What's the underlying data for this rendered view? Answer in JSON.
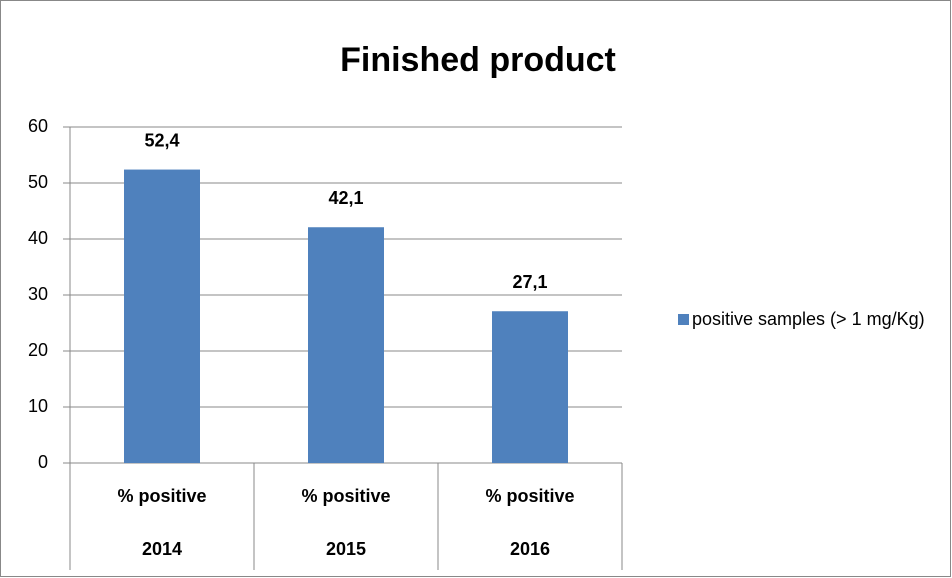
{
  "chart_data": {
    "type": "bar",
    "title": "Finished product",
    "categories": [
      [
        "% positive",
        "2014"
      ],
      [
        "% positive",
        "2015"
      ],
      [
        "% positive",
        "2016"
      ]
    ],
    "series": [
      {
        "name": "positive samples (> 1 mg/Kg)",
        "color": "#4f81bd",
        "values": [
          52.4,
          42.1,
          27.1
        ],
        "value_labels": [
          "52,4",
          "42,1",
          "27,1"
        ]
      }
    ],
    "ylim": [
      0,
      60
    ],
    "yticks": [
      0,
      10,
      20,
      30,
      40,
      50,
      60
    ],
    "grid": true,
    "legend": "right"
  }
}
